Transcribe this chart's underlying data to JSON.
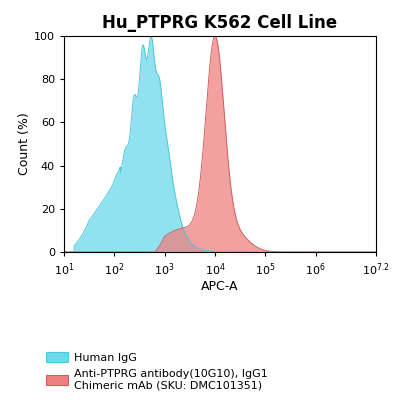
{
  "title": "Hu_PTPRG K562 Cell Line",
  "xlabel": "APC-A",
  "ylabel": "Count (%)",
  "ylim": [
    0,
    100
  ],
  "blue_color": "#6DD9EC",
  "blue_edge": "#4EC8DC",
  "red_color": "#F08080",
  "red_edge": "#D06060",
  "blue_peak_log": 2.72,
  "blue_std": 0.3,
  "red_peak_log": 4.0,
  "red_std": 0.18,
  "legend_label_1": "Human IgG",
  "legend_label_2": "Anti-PTPRG antibody(10G10), IgG1\nChimeric mAb (SKU: DMC101351)",
  "title_fontsize": 12,
  "axis_fontsize": 9,
  "tick_fontsize": 8,
  "background_color": "#ffffff"
}
